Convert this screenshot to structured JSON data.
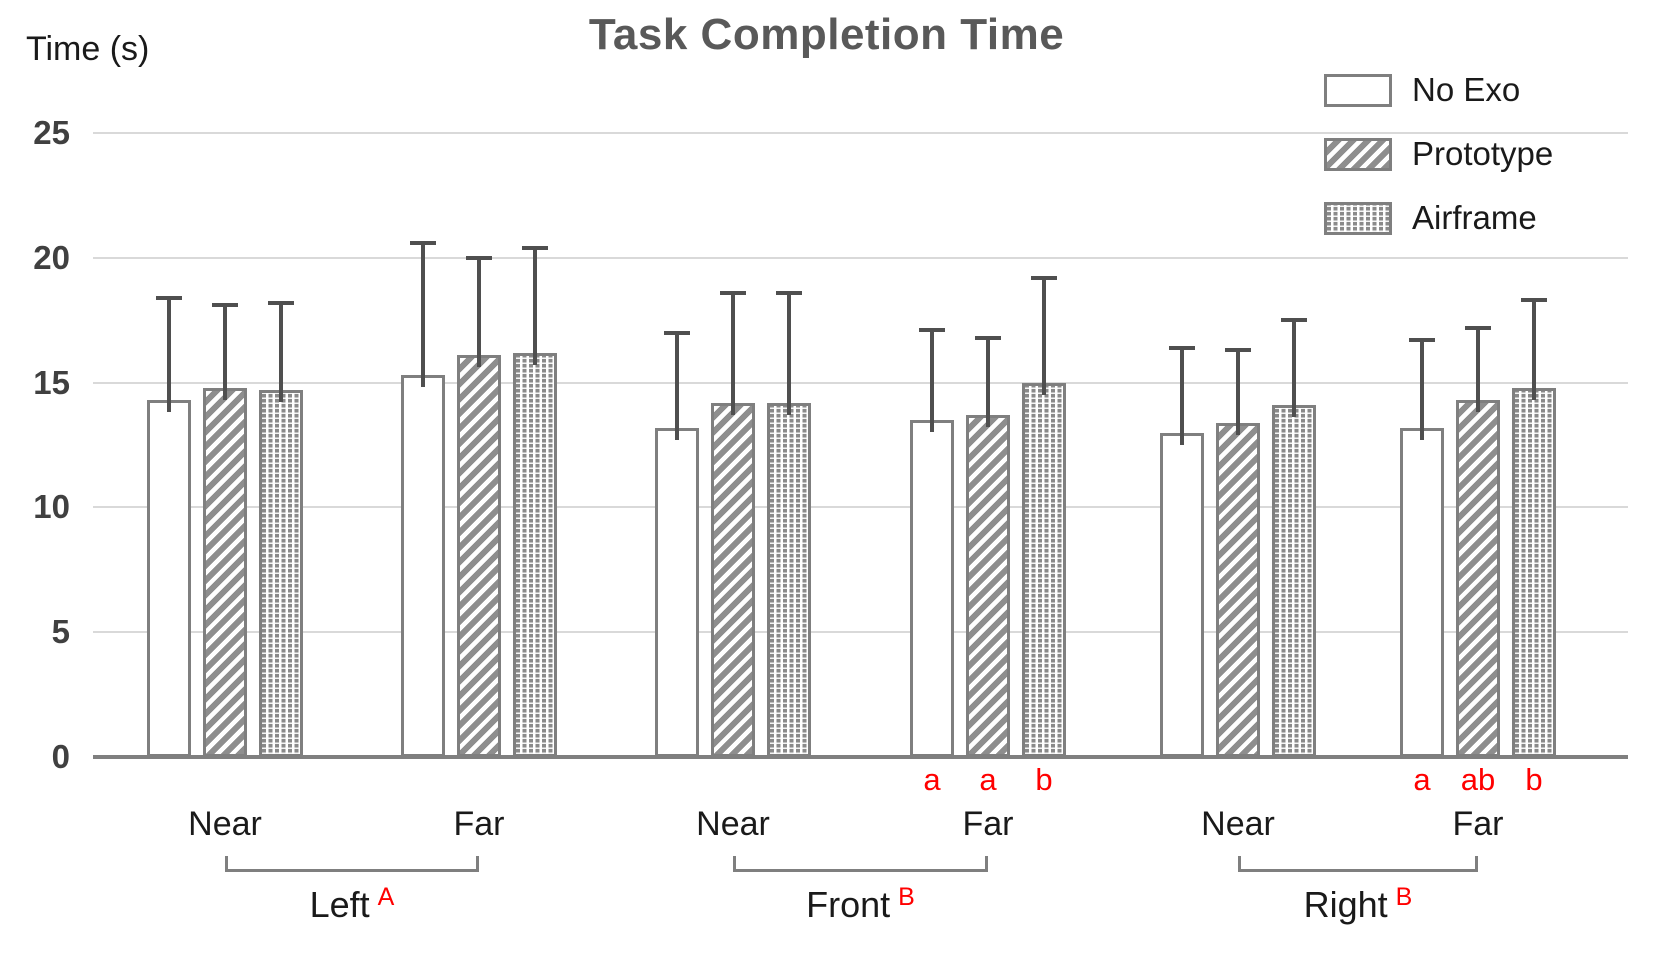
{
  "title": "Task Completion Time",
  "y_axis": {
    "label": "Time (s)",
    "ticks": [
      "0",
      "5",
      "10",
      "15",
      "20",
      "25"
    ]
  },
  "legend": {
    "items": [
      {
        "label": "No Exo",
        "pattern": "plain"
      },
      {
        "label": "Prototype",
        "pattern": "diag"
      },
      {
        "label": "Airframe",
        "pattern": "dots"
      }
    ]
  },
  "colors": {
    "title": "#595959",
    "text": "#1a1a1a",
    "tick": "#404040",
    "gridline": "#d9d9d9",
    "axis": "#7f7f7f",
    "bar_border": "#7f7f7f",
    "hatch": "#8e8e8e",
    "whisker": "#4f4f4f",
    "significance": "#ff0000"
  },
  "chart_data": {
    "type": "bar",
    "title": "Task Completion Time",
    "ylabel": "Time (s)",
    "ylim": [
      0,
      25
    ],
    "grid": true,
    "legend_position": "top-right",
    "series_names": [
      "No Exo",
      "Prototype",
      "Airframe"
    ],
    "error_bars": "upper_only",
    "sections": [
      {
        "label": "Left",
        "sig": "A",
        "subgroups": [
          {
            "label": "Near",
            "values": [
              14.3,
              14.8,
              14.7
            ],
            "error_tops": [
              18.4,
              18.1,
              18.2
            ],
            "sig_letters": [
              "",
              "",
              ""
            ]
          },
          {
            "label": "Far",
            "values": [
              15.3,
              16.1,
              16.2
            ],
            "error_tops": [
              20.6,
              20.0,
              20.4
            ],
            "sig_letters": [
              "",
              "",
              ""
            ]
          }
        ]
      },
      {
        "label": "Front",
        "sig": "B",
        "subgroups": [
          {
            "label": "Near",
            "values": [
              13.2,
              14.2,
              14.2
            ],
            "error_tops": [
              17.0,
              18.6,
              18.6
            ],
            "sig_letters": [
              "",
              "",
              ""
            ]
          },
          {
            "label": "Far",
            "values": [
              13.5,
              13.7,
              15.0
            ],
            "error_tops": [
              17.1,
              16.8,
              19.2
            ],
            "sig_letters": [
              "a",
              "a",
              "b"
            ]
          }
        ]
      },
      {
        "label": "Right",
        "sig": "B",
        "subgroups": [
          {
            "label": "Near",
            "values": [
              13.0,
              13.4,
              14.1
            ],
            "error_tops": [
              16.4,
              16.3,
              17.5
            ],
            "sig_letters": [
              "",
              "",
              ""
            ]
          },
          {
            "label": "Far",
            "values": [
              13.2,
              14.3,
              14.8
            ],
            "error_tops": [
              16.7,
              17.2,
              18.3
            ],
            "sig_letters": [
              "a",
              "ab",
              "b"
            ]
          }
        ]
      }
    ]
  }
}
